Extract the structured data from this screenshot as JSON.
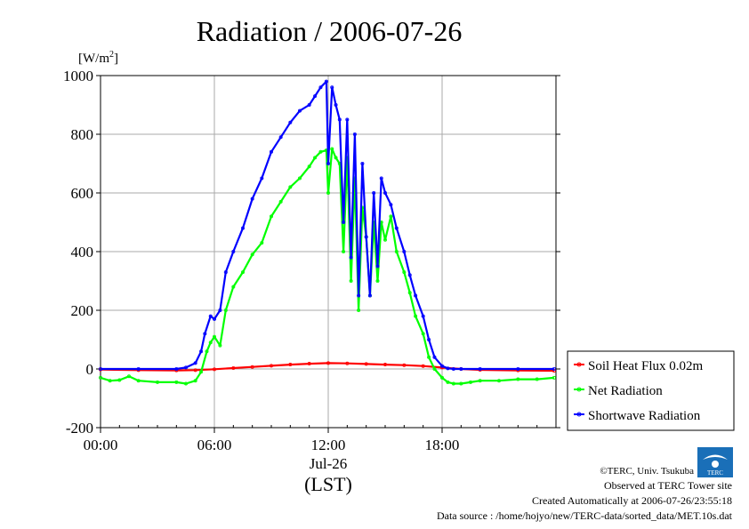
{
  "chart_data": {
    "type": "line",
    "title": "Radiation / 2006-07-26",
    "ylabel": "[W/m",
    "ylabel_sup": "2",
    "ylabel_close": "]",
    "xlabel": "(LST)",
    "date_label": "Jul-26",
    "ylim": [
      -200,
      1000
    ],
    "xlim": [
      0,
      24
    ],
    "yticks": [
      1000,
      800,
      600,
      400,
      200,
      0,
      -200
    ],
    "ytick_labels": [
      "1000",
      "800",
      "600",
      "400",
      "200",
      "0",
      "-200"
    ],
    "xticks": [
      0,
      6,
      12,
      18
    ],
    "xtick_labels": [
      "00:00",
      "06:00",
      "12:00",
      "18:00"
    ],
    "grid": true,
    "legend_position": "lower-right-outside",
    "series": [
      {
        "name": "Soil Heat Flux 0.02m",
        "color": "#ff0000",
        "x": [
          0,
          2,
          4,
          5,
          6,
          7,
          8,
          9,
          10,
          11,
          12,
          13,
          14,
          15,
          16,
          17,
          18,
          19,
          20,
          22,
          23.9
        ],
        "y": [
          -2,
          -4,
          -5,
          -4,
          -1,
          3,
          7,
          11,
          15,
          18,
          20,
          19,
          17,
          15,
          13,
          10,
          5,
          0,
          -3,
          -5,
          -6
        ]
      },
      {
        "name": "Net Radiation",
        "color": "#00ff00",
        "x": [
          0,
          0.5,
          1,
          1.5,
          2,
          3,
          4,
          4.5,
          5,
          5.3,
          5.6,
          5.8,
          6,
          6.3,
          6.6,
          7,
          7.5,
          8,
          8.5,
          9,
          9.5,
          10,
          10.5,
          11,
          11.3,
          11.6,
          11.9,
          12,
          12.2,
          12.4,
          12.6,
          12.8,
          13,
          13.2,
          13.4,
          13.6,
          13.8,
          14,
          14.2,
          14.4,
          14.6,
          14.8,
          15,
          15.3,
          15.6,
          16,
          16.3,
          16.6,
          17,
          17.3,
          17.6,
          18,
          18.3,
          18.6,
          19,
          19.5,
          20,
          21,
          22,
          23,
          23.9
        ],
        "y": [
          -30,
          -40,
          -38,
          -25,
          -40,
          -45,
          -45,
          -50,
          -40,
          -10,
          60,
          90,
          110,
          80,
          200,
          280,
          330,
          390,
          430,
          520,
          570,
          620,
          650,
          690,
          720,
          740,
          745,
          600,
          750,
          720,
          700,
          400,
          720,
          300,
          650,
          200,
          550,
          450,
          250,
          500,
          300,
          500,
          440,
          520,
          400,
          330,
          260,
          180,
          120,
          40,
          0,
          -30,
          -45,
          -50,
          -50,
          -45,
          -40,
          -40,
          -35,
          -35,
          -30
        ]
      },
      {
        "name": "Shortwave Radiation",
        "color": "#0000ff",
        "x": [
          0,
          2,
          4,
          4.5,
          5,
          5.3,
          5.5,
          5.8,
          6,
          6.3,
          6.6,
          7,
          7.5,
          8,
          8.5,
          9,
          9.5,
          10,
          10.5,
          11,
          11.3,
          11.6,
          11.9,
          12,
          12.2,
          12.4,
          12.6,
          12.8,
          13,
          13.2,
          13.4,
          13.6,
          13.8,
          14,
          14.2,
          14.4,
          14.6,
          14.8,
          15,
          15.3,
          15.6,
          16,
          16.3,
          16.6,
          17,
          17.3,
          17.6,
          18,
          18.3,
          18.6,
          19,
          20,
          22,
          23.9
        ],
        "y": [
          0,
          0,
          0,
          5,
          20,
          60,
          120,
          180,
          170,
          200,
          330,
          400,
          480,
          580,
          650,
          740,
          790,
          840,
          880,
          900,
          930,
          960,
          980,
          700,
          960,
          900,
          850,
          500,
          850,
          380,
          800,
          250,
          700,
          450,
          250,
          600,
          350,
          650,
          600,
          560,
          480,
          400,
          320,
          250,
          180,
          100,
          40,
          10,
          2,
          0,
          0,
          0,
          0,
          0
        ]
      }
    ]
  },
  "credits": {
    "copyright": "©TERC, Univ. Tsukuba",
    "site": "Observed at TERC Tower site",
    "created": "Created Automatically at 2006-07-26/23:55:18",
    "source": "Data source : /home/hojyo/new/TERC-data/sorted_data/MET.10s.dat",
    "logo_text": "TERC"
  }
}
